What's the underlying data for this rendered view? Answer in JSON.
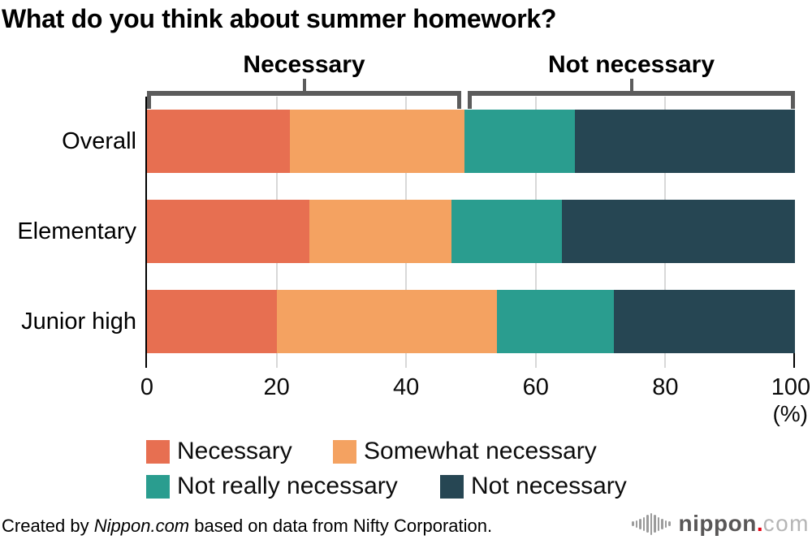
{
  "page": {
    "title": "What do you think about summer homework?"
  },
  "chart_data": {
    "type": "bar",
    "stacked": true,
    "orientation": "horizontal",
    "title": "What do you think about summer homework?",
    "categories": [
      "Overall",
      "Elementary",
      "Junior high"
    ],
    "series": [
      {
        "name": "Necessary",
        "color": "#e76f51",
        "values": [
          22,
          25,
          20
        ]
      },
      {
        "name": "Somewhat necessary",
        "color": "#f4a261",
        "values": [
          27,
          22,
          34
        ]
      },
      {
        "name": "Not really necessary",
        "color": "#2a9d8f",
        "values": [
          17,
          17,
          18
        ]
      },
      {
        "name": "Not necessary",
        "color": "#264653",
        "values": [
          34,
          36,
          28
        ]
      }
    ],
    "x_ticks": [
      0,
      20,
      40,
      60,
      80,
      100
    ],
    "xlim": [
      0,
      100
    ],
    "x_unit_label": "(%)",
    "grid": true,
    "legend_position": "bottom-left",
    "group_brackets": [
      {
        "label": "Necessary",
        "from": 0,
        "to": 49
      },
      {
        "label": "Not necessary",
        "from": 49,
        "to": 100
      }
    ]
  },
  "colors": {
    "axis": "#000000",
    "gridline": "#d8d8d8",
    "bracket": "#5c5c5c",
    "tick_label": "#0a0a0a"
  },
  "footer": {
    "credit_prefix": "Created by ",
    "credit_source": "Nippon.com",
    "credit_suffix": " based on data from Nifty Corporation.",
    "logo": {
      "icon": "audio-waveform-icon",
      "name": "nippon",
      "dot": ".",
      "tld": "com",
      "name_color": "#595757",
      "dot_color": "#e60012",
      "tld_color": "#b5b5b5"
    }
  }
}
